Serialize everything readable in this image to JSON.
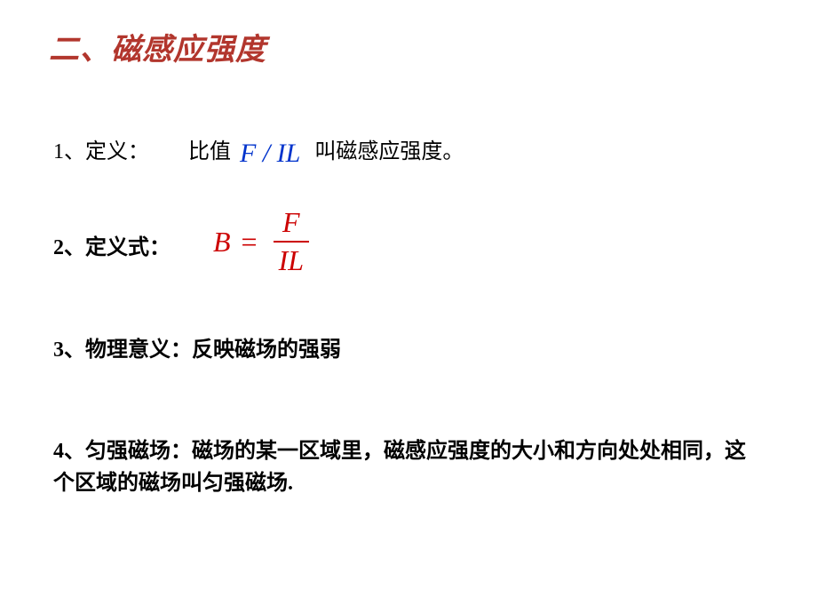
{
  "title": "二、磁感应强度",
  "item1": {
    "label": "1、定义：",
    "pre": "比值",
    "formula": "F / IL",
    "post": "叫磁感应强度。"
  },
  "item2": {
    "label": "2、定义式：",
    "formula": {
      "lhs": "B",
      "eq": "=",
      "num": "F",
      "den": "IL"
    }
  },
  "item3": {
    "text": "3、物理意义：反映磁场的强弱"
  },
  "item4": {
    "text": "4、匀强磁场：磁场的某一区域里，磁感应强度的大小和方向处处相同，这个区域的磁场叫匀强磁场."
  },
  "colors": {
    "title": "#b2362d",
    "body": "#000000",
    "formula_inline": "#0033cc",
    "formula_block": "#cc0000",
    "background": "#ffffff"
  },
  "fonts": {
    "body_family": "SimSun",
    "formula_family": "Times New Roman",
    "title_size_pt": 26,
    "body_size_pt": 18,
    "formula_inline_size_pt": 22,
    "formula_block_size_pt": 24
  }
}
